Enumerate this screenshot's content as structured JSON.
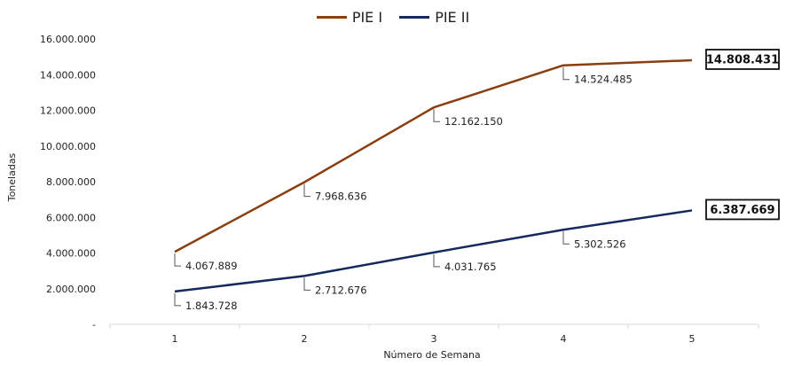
{
  "chart_data": {
    "type": "line",
    "title": "",
    "xlabel": "Número de Semana",
    "ylabel": "Toneladas",
    "categories": [
      "1",
      "2",
      "3",
      "4",
      "5"
    ],
    "ylim": [
      0,
      16000000
    ],
    "y_ticks": [
      "-",
      "2.000.000",
      "4.000.000",
      "6.000.000",
      "8.000.000",
      "10.000.000",
      "12.000.000",
      "14.000.000",
      "16.000.000"
    ],
    "legend_position": "top",
    "grid": false,
    "series": [
      {
        "name": "PIE I",
        "color": "#8B3E0F",
        "values": [
          4067889,
          7968636,
          12162150,
          14524485,
          14808431
        ],
        "labels": [
          "4.067.889",
          "7.968.636",
          "12.162.150",
          "14.524.485",
          "14.808.431"
        ]
      },
      {
        "name": "PIE II",
        "color": "#152A5C",
        "values": [
          1843728,
          2712676,
          4031765,
          5302526,
          6387669
        ],
        "labels": [
          "1.843.728",
          "2.712.676",
          "4.031.765",
          "5.302.526",
          "6.387.669"
        ]
      }
    ]
  }
}
